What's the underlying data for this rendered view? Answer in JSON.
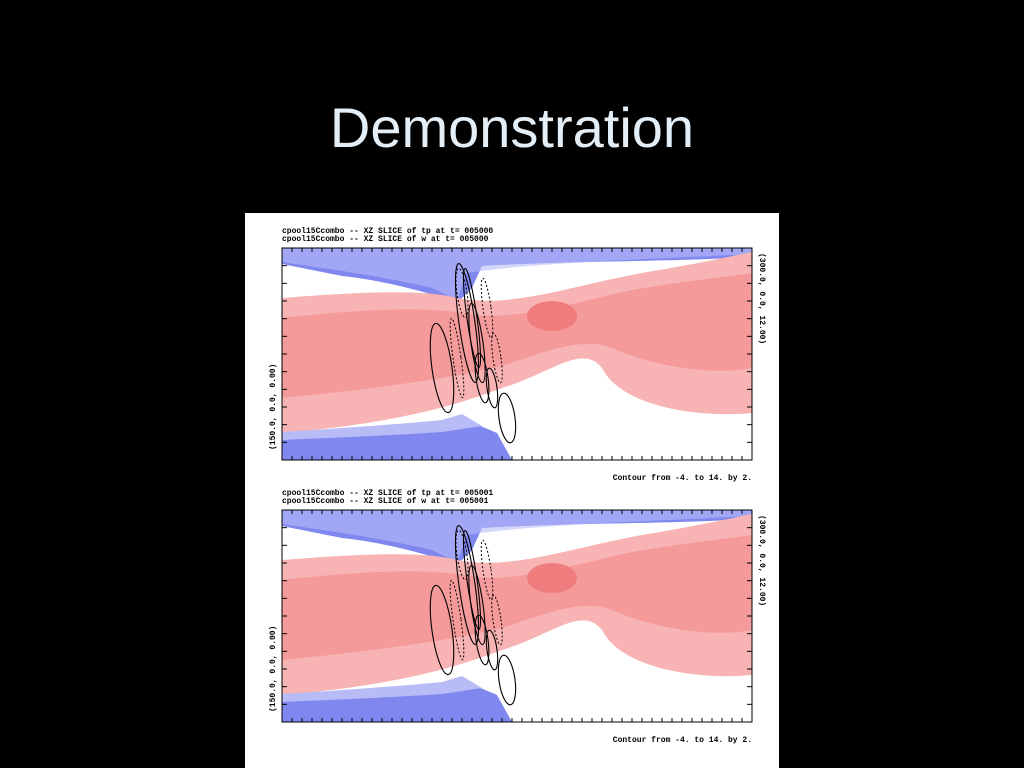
{
  "title": "Demonstration",
  "panels": [
    {
      "header": [
        "cpool15Ccombo  --  XZ SLICE of tp    at t= 005000",
        "cpool15Ccombo  --  XZ SLICE of w     at t= 005000"
      ],
      "left_label": "(150.0,  0.0,  0.00)",
      "right_label": "(300.0,  0.0,  12.00)",
      "footer": "Contour from -4. to 14. by 2."
    },
    {
      "header": [
        "cpool15Ccombo  --  XZ SLICE of tp    at t= 005001",
        "cpool15Ccombo  --  XZ SLICE of w     at t= 005001"
      ],
      "left_label": "(150.0,  0.0,  0.00)",
      "right_label": "(300.0,  0.0,  12.00)",
      "footer": "Contour from -4. to 14. by 2."
    }
  ]
}
